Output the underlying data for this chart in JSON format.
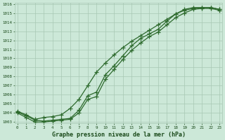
{
  "title": "Graphe pression niveau de la mer (hPa)",
  "x_values": [
    0,
    1,
    2,
    3,
    4,
    5,
    6,
    7,
    8,
    9,
    10,
    11,
    12,
    13,
    14,
    15,
    16,
    17,
    18,
    19,
    20,
    21,
    22,
    23
  ],
  "line1": [
    1004.1,
    1003.7,
    1003.2,
    1003.1,
    1003.2,
    1003.3,
    1003.4,
    1004.3,
    1005.9,
    1006.3,
    1008.2,
    1009.2,
    1010.3,
    1011.4,
    1012.2,
    1012.7,
    1013.2,
    1014.1,
    1014.9,
    1015.4,
    1015.6,
    1015.6,
    1015.6,
    1015.4
  ],
  "line2": [
    1004.2,
    1003.8,
    1003.3,
    1003.5,
    1003.6,
    1003.8,
    1004.5,
    1005.5,
    1007.0,
    1008.5,
    1009.5,
    1010.4,
    1011.2,
    1011.9,
    1012.5,
    1013.1,
    1013.7,
    1014.3,
    1014.9,
    1015.3,
    1015.5,
    1015.6,
    1015.6,
    1015.4
  ],
  "line3": [
    1004.0,
    1003.5,
    1003.0,
    1003.0,
    1003.1,
    1003.2,
    1003.3,
    1004.0,
    1005.5,
    1005.8,
    1007.7,
    1008.8,
    1009.9,
    1010.9,
    1011.7,
    1012.4,
    1012.9,
    1013.7,
    1014.5,
    1015.0,
    1015.4,
    1015.5,
    1015.5,
    1015.3
  ],
  "line_color": "#2d6a2d",
  "bg_color": "#cce8d8",
  "grid_color": "#a8c8b4",
  "title_color": "#1a4a1a",
  "tick_color": "#1a4a1a",
  "ylim_min": 1003,
  "ylim_max": 1016,
  "xlim_min": 0,
  "xlim_max": 23,
  "marker": "+",
  "marker_size": 4,
  "linewidth": 0.9,
  "xlabel_fontsize": 6.0,
  "tick_fontsize": 4.2
}
